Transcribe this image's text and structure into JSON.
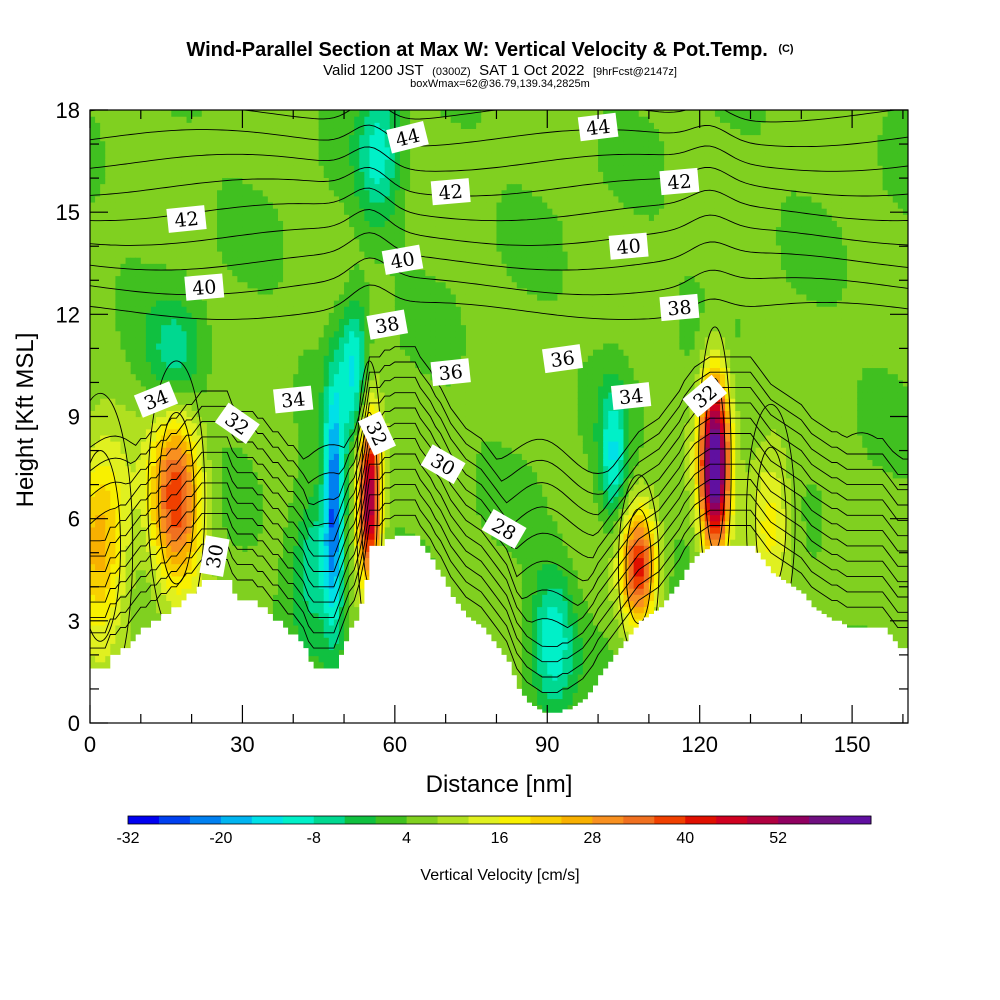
{
  "chart_data": {
    "type": "heatmap",
    "title": "Wind-Parallel Section at Max W: Vertical Velocity & Pot.Temp.",
    "title_mark": "(C)",
    "subtitle_parts": [
      "Valid 1200 JST",
      "(0300Z)",
      "SAT 1 Oct 2022",
      "[9hrFcst@2147z]"
    ],
    "subtitle2": "boxWmax=62@36.79,139.34,2825m",
    "xlabel": "Distance [nm]",
    "ylabel": "Height [Kft MSL]",
    "xlim": [
      0,
      161
    ],
    "ylim": [
      0,
      18
    ],
    "xticks": [
      0,
      30,
      60,
      90,
      120,
      150
    ],
    "yticks": [
      0,
      3,
      6,
      9,
      12,
      15,
      18
    ],
    "colorbar": {
      "label": "Vertical Velocity [cm/s]",
      "ticks": [
        "-32",
        "-20",
        "-8",
        "4",
        "16",
        "28",
        "40",
        "52"
      ],
      "colors": [
        "#0000f0",
        "#0040f0",
        "#0080f0",
        "#00b4f0",
        "#00e0e8",
        "#00f0c8",
        "#00d890",
        "#10c040",
        "#40c020",
        "#80d020",
        "#b0e020",
        "#e0f020",
        "#f8f000",
        "#f8d000",
        "#f8b000",
        "#f89020",
        "#f07020",
        "#f04000",
        "#e01000",
        "#d00020",
        "#b00040",
        "#900060",
        "#701080",
        "#6010a0"
      ]
    },
    "terrain": [
      [
        0,
        1.6
      ],
      [
        1,
        1.6
      ],
      [
        2,
        1.6
      ],
      [
        3,
        1.6
      ],
      [
        4,
        2.0
      ],
      [
        5,
        2.0
      ],
      [
        6,
        2.2
      ],
      [
        7,
        2.2
      ],
      [
        8,
        2.4
      ],
      [
        9,
        2.6
      ],
      [
        10,
        2.8
      ],
      [
        11,
        2.8
      ],
      [
        12,
        3.0
      ],
      [
        13,
        3.0
      ],
      [
        14,
        3.2
      ],
      [
        15,
        3.2
      ],
      [
        16,
        3.4
      ],
      [
        17,
        3.4
      ],
      [
        18,
        3.6
      ],
      [
        19,
        3.8
      ],
      [
        20,
        3.8
      ],
      [
        21,
        4.0
      ],
      [
        22,
        4.2
      ],
      [
        23,
        4.2
      ],
      [
        24,
        4.2
      ],
      [
        25,
        4.2
      ],
      [
        26,
        4.2
      ],
      [
        27,
        4.2
      ],
      [
        28,
        3.8
      ],
      [
        29,
        3.6
      ],
      [
        30,
        3.6
      ],
      [
        31,
        3.6
      ],
      [
        32,
        3.6
      ],
      [
        33,
        3.4
      ],
      [
        34,
        3.4
      ],
      [
        35,
        3.2
      ],
      [
        36,
        3.0
      ],
      [
        37,
        3.0
      ],
      [
        38,
        2.8
      ],
      [
        39,
        2.6
      ],
      [
        40,
        2.6
      ],
      [
        41,
        2.4
      ],
      [
        42,
        2.2
      ],
      [
        43,
        1.8
      ],
      [
        44,
        1.6
      ],
      [
        45,
        1.6
      ],
      [
        46,
        1.6
      ],
      [
        47,
        1.6
      ],
      [
        48,
        1.6
      ],
      [
        49,
        2.0
      ],
      [
        50,
        2.4
      ],
      [
        51,
        2.8
      ],
      [
        52,
        3.0
      ],
      [
        53,
        3.5
      ],
      [
        54,
        4.2
      ],
      [
        55,
        5.2
      ],
      [
        56,
        5.2
      ],
      [
        57,
        5.2
      ],
      [
        58,
        5.4
      ],
      [
        59,
        5.4
      ],
      [
        60,
        5.5
      ],
      [
        61,
        5.5
      ],
      [
        62,
        5.5
      ],
      [
        63,
        5.5
      ],
      [
        64,
        5.5
      ],
      [
        65,
        5.2
      ],
      [
        66,
        5.0
      ],
      [
        67,
        4.8
      ],
      [
        68,
        4.5
      ],
      [
        69,
        4.3
      ],
      [
        70,
        4.0
      ],
      [
        71,
        3.7
      ],
      [
        72,
        3.5
      ],
      [
        73,
        3.3
      ],
      [
        74,
        3.1
      ],
      [
        75,
        3.0
      ],
      [
        76,
        2.9
      ],
      [
        77,
        2.8
      ],
      [
        78,
        2.6
      ],
      [
        79,
        2.4
      ],
      [
        80,
        2.2
      ],
      [
        81,
        2.0
      ],
      [
        82,
        1.8
      ],
      [
        83,
        1.4
      ],
      [
        84,
        1.0
      ],
      [
        85,
        0.8
      ],
      [
        86,
        0.6
      ],
      [
        87,
        0.5
      ],
      [
        88,
        0.4
      ],
      [
        89,
        0.3
      ],
      [
        90,
        0.3
      ],
      [
        91,
        0.3
      ],
      [
        92,
        0.3
      ],
      [
        93,
        0.4
      ],
      [
        94,
        0.4
      ],
      [
        95,
        0.5
      ],
      [
        96,
        0.6
      ],
      [
        97,
        0.7
      ],
      [
        98,
        0.9
      ],
      [
        99,
        1.1
      ],
      [
        100,
        1.4
      ],
      [
        101,
        1.6
      ],
      [
        102,
        1.8
      ],
      [
        103,
        2.0
      ],
      [
        104,
        2.2
      ],
      [
        105,
        2.4
      ],
      [
        106,
        2.6
      ],
      [
        107,
        2.8
      ],
      [
        108,
        3.0
      ],
      [
        109,
        3.1
      ],
      [
        110,
        3.2
      ],
      [
        111,
        3.3
      ],
      [
        112,
        3.4
      ],
      [
        113,
        3.6
      ],
      [
        114,
        3.8
      ],
      [
        115,
        4.0
      ],
      [
        116,
        4.2
      ],
      [
        117,
        4.5
      ],
      [
        118,
        4.7
      ],
      [
        119,
        4.9
      ],
      [
        120,
        5.0
      ],
      [
        121,
        5.1
      ],
      [
        122,
        5.2
      ],
      [
        123,
        5.2
      ],
      [
        124,
        5.2
      ],
      [
        125,
        5.2
      ],
      [
        126,
        5.2
      ],
      [
        127,
        5.2
      ],
      [
        128,
        5.2
      ],
      [
        129,
        5.2
      ],
      [
        130,
        5.2
      ],
      [
        131,
        5.0
      ],
      [
        132,
        4.8
      ],
      [
        133,
        4.6
      ],
      [
        134,
        4.4
      ],
      [
        135,
        4.3
      ],
      [
        136,
        4.2
      ],
      [
        137,
        4.1
      ],
      [
        138,
        4.0
      ],
      [
        139,
        3.9
      ],
      [
        140,
        3.8
      ],
      [
        141,
        3.6
      ],
      [
        142,
        3.4
      ],
      [
        143,
        3.3
      ],
      [
        144,
        3.2
      ],
      [
        145,
        3.1
      ],
      [
        146,
        3.0
      ],
      [
        147,
        3.0
      ],
      [
        148,
        2.9
      ],
      [
        149,
        2.8
      ],
      [
        150,
        2.8
      ],
      [
        151,
        2.8
      ],
      [
        152,
        2.8
      ],
      [
        153,
        2.8
      ],
      [
        154,
        2.8
      ],
      [
        155,
        2.8
      ],
      [
        156,
        2.8
      ],
      [
        157,
        2.6
      ],
      [
        158,
        2.4
      ],
      [
        159,
        2.2
      ],
      [
        160,
        2.2
      ],
      [
        161,
        2.2
      ]
    ],
    "updraft_cores": [
      {
        "x": 2,
        "y": 5.2,
        "peak": 22,
        "sx": 4,
        "sy": 2.0
      },
      {
        "x": 17,
        "y": 6.6,
        "peak": 34,
        "sx": 3.5,
        "sy": 1.8
      },
      {
        "x": 55,
        "y": 6.6,
        "peak": 48,
        "sx": 1.6,
        "sy": 1.8
      },
      {
        "x": 108,
        "y": 4.6,
        "peak": 36,
        "sx": 2.5,
        "sy": 1.2
      },
      {
        "x": 123,
        "y": 7.6,
        "peak": 62,
        "sx": 2.0,
        "sy": 1.8
      },
      {
        "x": 134,
        "y": 6.0,
        "peak": 14,
        "sx": 3.0,
        "sy": 1.5
      }
    ],
    "downdraft_cores": [
      {
        "x": 48,
        "y": 6.4,
        "peak": -28,
        "sx": 1.4,
        "sy": 2.5
      },
      {
        "x": 44,
        "y": 4.8,
        "peak": -14,
        "sx": 3.0,
        "sy": 1.5
      },
      {
        "x": 52,
        "y": 10.5,
        "peak": -18,
        "sx": 2.0,
        "sy": 1.5
      },
      {
        "x": 91,
        "y": 2.4,
        "peak": -16,
        "sx": 3.0,
        "sy": 1.5
      },
      {
        "x": 103,
        "y": 7.8,
        "peak": -16,
        "sx": 2.0,
        "sy": 1.5
      },
      {
        "x": 17,
        "y": 10.7,
        "peak": -12,
        "sx": 4.0,
        "sy": 1.2
      },
      {
        "x": 57,
        "y": 16.8,
        "peak": -14,
        "sx": 3.0,
        "sy": 1.5
      }
    ],
    "theta_levels": [
      28,
      30,
      32,
      34,
      36,
      38,
      40,
      42,
      44
    ],
    "contour_labels": [
      {
        "text": "44",
        "x": 62.5,
        "y": 17.2,
        "angle": -14
      },
      {
        "text": "44",
        "x": 100,
        "y": 17.5,
        "angle": -7
      },
      {
        "text": "42",
        "x": 71,
        "y": 15.6,
        "angle": -5
      },
      {
        "text": "42",
        "x": 116,
        "y": 15.9,
        "angle": -5
      },
      {
        "text": "42",
        "x": 19,
        "y": 14.8,
        "angle": -6
      },
      {
        "text": "40",
        "x": 61.5,
        "y": 13.6,
        "angle": -10
      },
      {
        "text": "40",
        "x": 106,
        "y": 14.0,
        "angle": -5
      },
      {
        "text": "40",
        "x": 22.5,
        "y": 12.8,
        "angle": -5
      },
      {
        "text": "38",
        "x": 58.5,
        "y": 11.7,
        "angle": -10
      },
      {
        "text": "38",
        "x": 116,
        "y": 12.2,
        "angle": -5
      },
      {
        "text": "36",
        "x": 71,
        "y": 10.3,
        "angle": -6
      },
      {
        "text": "36",
        "x": 93,
        "y": 10.7,
        "angle": -8
      },
      {
        "text": "34",
        "x": 13,
        "y": 9.5,
        "angle": -22
      },
      {
        "text": "34",
        "x": 40,
        "y": 9.5,
        "angle": -6
      },
      {
        "text": "34",
        "x": 106.5,
        "y": 9.6,
        "angle": -6
      },
      {
        "text": "32",
        "x": 29,
        "y": 8.8,
        "angle": 35
      },
      {
        "text": "32",
        "x": 56.5,
        "y": 8.5,
        "angle": 65
      },
      {
        "text": "32",
        "x": 121,
        "y": 9.6,
        "angle": -40
      },
      {
        "text": "30",
        "x": 69.5,
        "y": 7.6,
        "angle": 30
      },
      {
        "text": "30",
        "x": 24.5,
        "y": 4.9,
        "angle": -80
      },
      {
        "text": "28",
        "x": 81.5,
        "y": 5.7,
        "angle": 30
      }
    ]
  }
}
